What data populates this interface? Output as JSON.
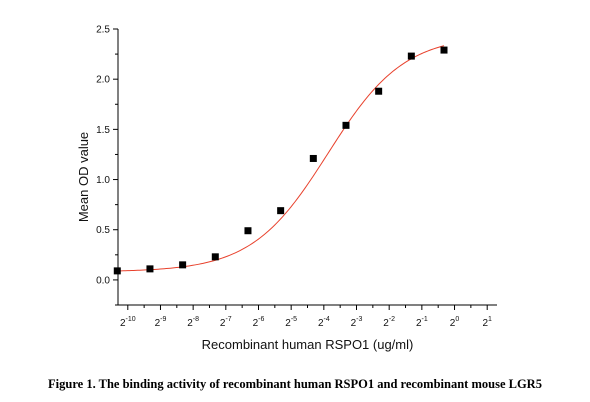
{
  "chart_data": {
    "type": "scatter",
    "title": "",
    "xlabel": "Recombinant human RSPO1 (ug/ml)",
    "ylabel": "Mean OD value",
    "x_scale": "log2",
    "x_exponent_range": [
      -10.3,
      1.3
    ],
    "x_ticks": [
      {
        "base": "2",
        "exp": "-10",
        "value": 0.0009765625
      },
      {
        "base": "2",
        "exp": "-9",
        "value": 0.001953125
      },
      {
        "base": "2",
        "exp": "-8",
        "value": 0.00390625
      },
      {
        "base": "2",
        "exp": "-7",
        "value": 0.0078125
      },
      {
        "base": "2",
        "exp": "-6",
        "value": 0.015625
      },
      {
        "base": "2",
        "exp": "-5",
        "value": 0.03125
      },
      {
        "base": "2",
        "exp": "-4",
        "value": 0.0625
      },
      {
        "base": "2",
        "exp": "-3",
        "value": 0.125
      },
      {
        "base": "2",
        "exp": "-2",
        "value": 0.25
      },
      {
        "base": "2",
        "exp": "-1",
        "value": 0.5
      },
      {
        "base": "2",
        "exp": "0",
        "value": 1
      },
      {
        "base": "2",
        "exp": "1",
        "value": 2
      }
    ],
    "ylim": [
      -0.25,
      2.5
    ],
    "y_ticks": [
      "0.0",
      "0.5",
      "1.0",
      "1.5",
      "2.0",
      "2.5"
    ],
    "y_tick_values": [
      0,
      0.5,
      1.0,
      1.5,
      2.0,
      2.5
    ],
    "grid": false,
    "series": [
      {
        "marker": "square",
        "color": "#000000",
        "x": [
          0.00078125,
          0.0015625,
          0.003125,
          0.00625,
          0.0125,
          0.025,
          0.05,
          0.1,
          0.2,
          0.4,
          0.8
        ],
        "y": [
          0.09,
          0.11,
          0.15,
          0.23,
          0.49,
          0.69,
          1.21,
          1.54,
          1.88,
          2.23,
          2.29
        ]
      },
      {
        "type": "line",
        "fit": "four-parameter logistic",
        "color": "#e8412c",
        "bottom": 0.08,
        "top": 2.44,
        "ec50": 0.0682,
        "hill": 1.24
      }
    ],
    "caption": "Figure 1. The binding activity of recombinant human RSPO1 and recombinant mouse LGR5"
  }
}
